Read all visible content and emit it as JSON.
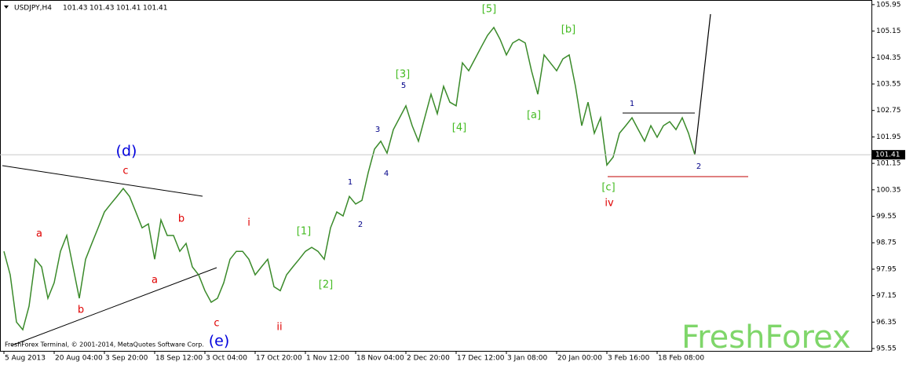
{
  "chart_data": {
    "type": "line",
    "header": {
      "symbol": "USDJPY,H4",
      "ohlc": [
        101.43,
        101.43,
        101.41,
        101.41
      ]
    },
    "copyright": "FreshForex Terminal, © 2001-2014, MetaQuotes Software Corp.",
    "watermark": "FreshForex",
    "x": [
      0,
      1,
      2,
      3,
      4,
      5,
      6,
      7,
      8,
      9,
      10,
      11,
      12,
      13,
      14,
      15,
      16,
      17,
      18,
      19,
      20,
      21,
      22,
      23,
      24,
      25,
      26,
      27,
      28,
      29,
      30,
      31,
      32,
      33,
      34,
      35,
      36,
      37,
      38,
      39,
      40,
      41,
      42,
      43,
      44,
      45,
      46,
      47,
      48,
      49,
      50,
      51,
      52,
      53,
      54,
      55,
      56,
      57,
      58,
      59,
      60,
      61,
      62,
      63,
      64,
      65,
      66,
      67,
      68,
      69,
      70,
      71,
      72,
      73,
      74,
      75,
      76,
      77,
      78,
      79,
      80,
      81,
      82,
      83,
      84,
      85,
      86,
      87,
      88,
      89,
      90,
      91,
      92,
      93,
      94,
      95,
      96,
      97,
      98,
      99,
      100,
      101,
      102,
      103,
      104,
      105,
      106,
      107,
      108,
      109,
      110
    ],
    "series": [
      {
        "name": "USDJPY",
        "color": "#3a8a2a",
        "values": [
          98.49,
          97.78,
          96.35,
          96.12,
          96.83,
          98.25,
          98.02,
          97.07,
          97.54,
          98.49,
          98.97,
          98.02,
          97.07,
          98.25,
          98.73,
          99.2,
          99.68,
          99.92,
          100.15,
          100.39,
          100.15,
          99.68,
          99.2,
          99.32,
          98.25,
          99.44,
          98.97,
          98.97,
          98.49,
          98.73,
          98.02,
          97.78,
          97.3,
          96.95,
          97.07,
          97.54,
          98.25,
          98.49,
          98.49,
          98.25,
          97.78,
          98.02,
          98.25,
          97.42,
          97.3,
          97.78,
          98.02,
          98.25,
          98.49,
          98.61,
          98.49,
          98.25,
          99.2,
          99.68,
          99.56,
          100.15,
          99.92,
          100.03,
          100.87,
          101.58,
          101.82,
          101.46,
          102.17,
          102.53,
          102.89,
          102.29,
          101.82,
          102.53,
          103.24,
          102.65,
          103.48,
          103.0,
          102.89,
          104.19,
          103.95,
          104.31,
          104.67,
          105.02,
          105.26,
          104.9,
          104.43,
          104.79,
          104.9,
          104.79,
          103.95,
          103.24,
          104.43,
          104.19,
          103.95,
          104.31,
          104.43,
          103.48,
          102.29,
          103.0,
          102.06,
          102.53,
          101.1,
          101.34,
          102.06,
          102.29,
          102.53,
          102.17,
          101.82,
          102.29,
          101.94,
          102.29,
          102.41,
          102.17,
          102.53,
          102.06,
          101.41
        ]
      }
    ],
    "last_price": 101.41,
    "xlim": [
      -0.625,
      138.125
    ],
    "ylim": [
      95.48,
      106.09
    ],
    "yticks": [
      105.95,
      105.15,
      104.35,
      103.55,
      102.75,
      101.95,
      101.15,
      100.35,
      99.55,
      98.75,
      97.95,
      97.15,
      96.35,
      95.55
    ],
    "xticks": [
      {
        "value": 0,
        "label": "5 Aug 2013"
      },
      {
        "value": 8,
        "label": "20 Aug 04:00"
      },
      {
        "value": 16,
        "label": "3 Sep 20:00"
      },
      {
        "value": 24,
        "label": "18 Sep 12:00"
      },
      {
        "value": 32,
        "label": "3 Oct 04:00"
      },
      {
        "value": 40,
        "label": "17 Oct 20:00"
      },
      {
        "value": 48,
        "label": "1 Nov 12:00"
      },
      {
        "value": 56,
        "label": "18 Nov 04:00"
      },
      {
        "value": 64,
        "label": "2 Dec 20:00"
      },
      {
        "value": 72,
        "label": "17 Dec 12:00"
      },
      {
        "value": 80,
        "label": "3 Jan 08:00"
      },
      {
        "value": 88,
        "label": "20 Jan 00:00"
      },
      {
        "value": 96,
        "label": "3 Feb 16:00"
      },
      {
        "value": 104,
        "label": "18 Feb 08:00"
      }
    ],
    "annotations": [
      {
        "text": "(d)",
        "color": "#0000dd"
      },
      {
        "text": "c",
        "color": "#e00000"
      },
      {
        "text": "a",
        "color": "#e00000"
      },
      {
        "text": "b",
        "color": "#e00000"
      },
      {
        "text": "a",
        "color": "#e00000"
      },
      {
        "text": "b",
        "color": "#e00000"
      },
      {
        "text": "c",
        "color": "#e00000"
      },
      {
        "text": "(e)",
        "color": "#0000dd"
      },
      {
        "text": "i",
        "color": "#e00000"
      },
      {
        "text": "ii",
        "color": "#e00000"
      },
      {
        "text": "[1]",
        "color": "#44bb22"
      },
      {
        "text": "[2]",
        "color": "#44bb22"
      },
      {
        "text": "1",
        "color": "#000088"
      },
      {
        "text": "2",
        "color": "#000088"
      },
      {
        "text": "3",
        "color": "#000088"
      },
      {
        "text": "4",
        "color": "#000088"
      },
      {
        "text": "5",
        "color": "#000088"
      },
      {
        "text": "[3]",
        "color": "#44bb22"
      },
      {
        "text": "[4]",
        "color": "#44bb22"
      },
      {
        "text": "[5]",
        "color": "#44bb22"
      },
      {
        "text": "[a]",
        "color": "#44bb22"
      },
      {
        "text": "[b]",
        "color": "#44bb22"
      },
      {
        "text": "[c]",
        "color": "#44bb22"
      },
      {
        "text": "iv",
        "color": "#e00000"
      },
      {
        "text": "1",
        "color": "#000088"
      },
      {
        "text": "2",
        "color": "#000088"
      }
    ]
  }
}
